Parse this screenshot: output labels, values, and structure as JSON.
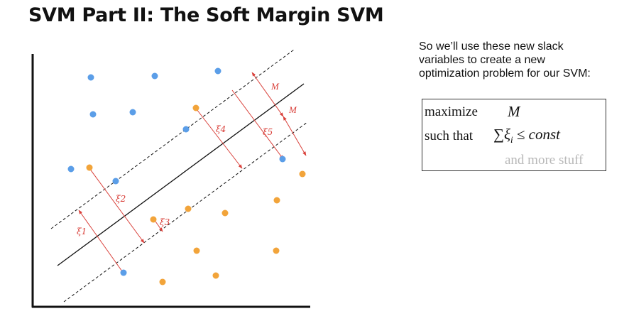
{
  "slide": {
    "title": "SVM Part II: The Soft Margin SVM",
    "note": "So we’ll use these new slack variables to create a new optimization problem for our SVM:"
  },
  "problem": {
    "maximize_label": "maximize",
    "maximize_var": "M",
    "constraint_label": "such that",
    "constraint_expr": "∑ξᵢ ≤ const",
    "constraint_sum": "∑",
    "constraint_xi": "ξ",
    "constraint_sub": "i",
    "constraint_le": "≤",
    "constraint_const": "const",
    "extra": "and more stuff"
  },
  "diagram": {
    "colors": {
      "class_blue": "#5b9ee8",
      "class_orange": "#f2a43a",
      "slack_line": "#d9403a",
      "hyperplane": "#111111"
    },
    "margin_labels": [
      "M",
      "M"
    ],
    "slack_labels": [
      "ξ1",
      "ξ2",
      "ξ3",
      "ξ4",
      "ξ5"
    ]
  }
}
